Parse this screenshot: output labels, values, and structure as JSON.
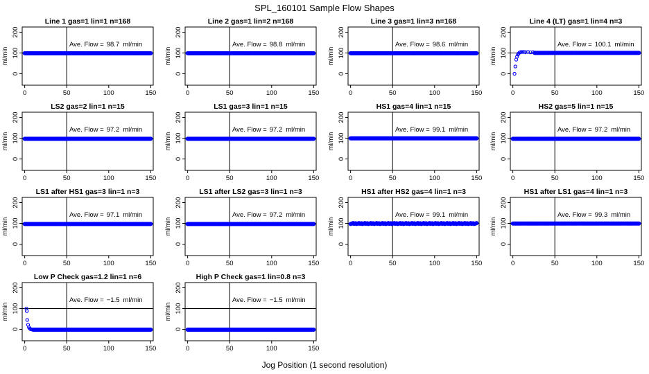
{
  "chart_data": {
    "title": "SPL_160101  Sample Flow Shapes",
    "xlabel": "Jog Position (1 second resolution)",
    "type": "scatter",
    "shared": {
      "ylabel": "ml/min",
      "xticks": [
        0,
        50,
        100,
        150
      ],
      "yticks": [
        0,
        100,
        200
      ],
      "xlim": [
        -3,
        153
      ],
      "ylim": [
        -55,
        225
      ],
      "annotation_prefix": "Ave. Flow =",
      "annotation_unit": "ml/min",
      "vline_x": 50,
      "hline_y": 100,
      "point_color": "#0000ff"
    },
    "panels": [
      {
        "title": "Line 1 gas=1 lin=1 n=168",
        "ave_flow": "98.7",
        "steady": 98.7
      },
      {
        "title": "Line 2 gas=1 lin=2 n=168",
        "ave_flow": "98.8",
        "steady": 98.8
      },
      {
        "title": "Line 3 gas=1 lin=3 n=168",
        "ave_flow": "98.6",
        "steady": 98.6
      },
      {
        "title": "Line 4 (LT) gas=1 lin=4 n=3",
        "ave_flow": "100.1",
        "steady": 100.5,
        "ramp": [
          [
            2,
            0
          ],
          [
            3,
            35
          ],
          [
            4,
            68
          ],
          [
            5,
            82
          ],
          [
            6,
            92
          ],
          [
            7,
            98
          ],
          [
            8,
            102
          ],
          [
            9,
            104
          ],
          [
            11,
            105
          ],
          [
            13,
            105
          ],
          [
            15,
            104
          ],
          [
            18,
            105
          ],
          [
            21,
            103
          ],
          [
            24,
            104
          ]
        ],
        "steady_from": 26
      },
      {
        "title": "LS2 gas=2 lin=1 n=15",
        "ave_flow": "97.2",
        "steady": 97.2
      },
      {
        "title": "LS1 gas=3 lin=1 n=15",
        "ave_flow": "97.2",
        "steady": 97.2
      },
      {
        "title": "HS1 gas=4 lin=1 n=15",
        "ave_flow": "99.1",
        "steady": 99.1
      },
      {
        "title": "HS2 gas=5 lin=1 n=15",
        "ave_flow": "97.2",
        "steady": 97.2
      },
      {
        "title": "LS1 after HS1 gas=3 lin=1 n=3",
        "ave_flow": "97.1",
        "steady": 97.1
      },
      {
        "title": "LS1 after LS2 gas=3 lin=1 n=3",
        "ave_flow": "97.2",
        "steady": 97.2
      },
      {
        "title": "HS1 after HS2 gas=4 lin=1 n=3",
        "ave_flow": "99.1",
        "steady": 99.1,
        "spread": 4
      },
      {
        "title": "HS1 after LS1 gas=4 lin=1 n=3",
        "ave_flow": "99.3",
        "steady": 99.3
      },
      {
        "title": "Low P Check gas=1.2 lin=1 n=6",
        "ave_flow": "−1.5",
        "steady": -1.5,
        "ramp": [
          [
            2,
            100
          ],
          [
            2.5,
            88
          ],
          [
            3,
            45
          ],
          [
            4,
            22
          ],
          [
            5,
            10
          ],
          [
            6,
            4
          ],
          [
            7,
            1
          ],
          [
            8,
            0
          ],
          [
            9,
            -1
          ]
        ],
        "steady_from": 10
      },
      {
        "title": "High P Check gas=1 lin=0.8 n=3",
        "ave_flow": "−1.5",
        "steady": -1.5
      }
    ]
  }
}
